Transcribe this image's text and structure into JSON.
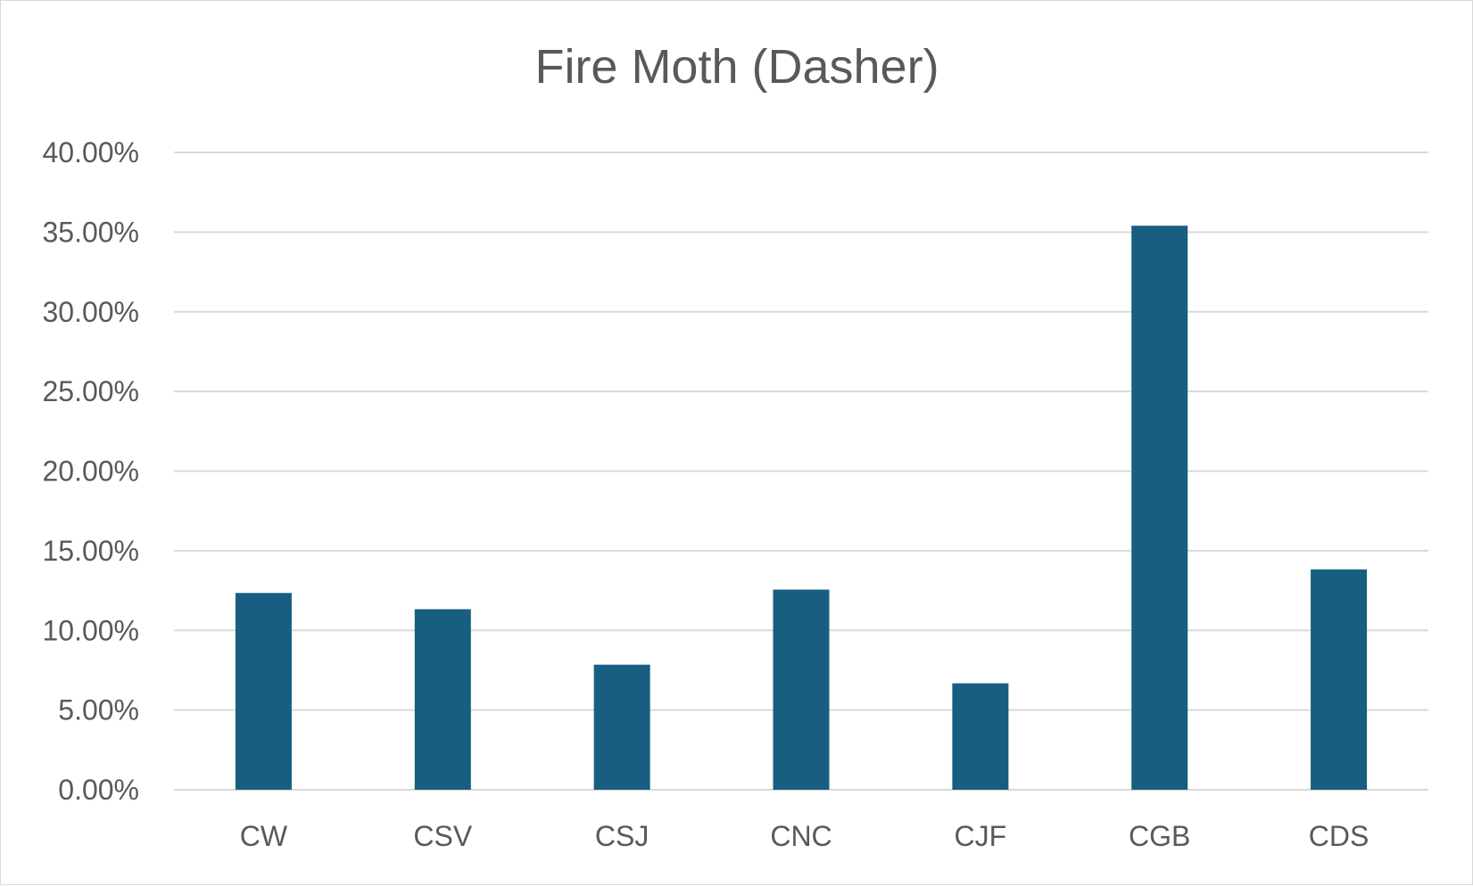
{
  "chart_data": {
    "type": "bar",
    "title": "Fire Moth (Dasher)",
    "categories": [
      "CW",
      "CSV",
      "CSJ",
      "CNC",
      "CJF",
      "CGB",
      "CDS"
    ],
    "series": [
      {
        "values": [
          0.1235,
          0.1133,
          0.0785,
          0.1256,
          0.0668,
          0.354,
          0.1383
        ],
        "color": "#175e80"
      }
    ],
    "ylim": [
      0,
      0.4
    ],
    "y_ticks": [
      0,
      0.05,
      0.1,
      0.15,
      0.2,
      0.25,
      0.3,
      0.35,
      0.4
    ],
    "y_tick_labels": [
      "0.00%",
      "5.00%",
      "10.00%",
      "15.00%",
      "20.00%",
      "25.00%",
      "30.00%",
      "35.00%",
      "40.00%"
    ],
    "xlabel": "",
    "ylabel": "",
    "grid": true,
    "legend": "none"
  }
}
